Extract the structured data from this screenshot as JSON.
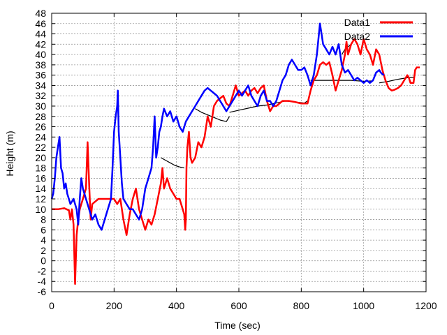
{
  "chart_data": {
    "type": "line",
    "title": "",
    "xlabel": "Time (sec)",
    "ylabel": "Height (m)",
    "xlim": [
      0,
      1200
    ],
    "ylim": [
      -6,
      48
    ],
    "xticks": [
      0,
      200,
      400,
      600,
      800,
      1000,
      1200
    ],
    "yticks": [
      -6,
      -4,
      -2,
      0,
      2,
      4,
      6,
      8,
      10,
      12,
      14,
      16,
      18,
      20,
      22,
      24,
      26,
      28,
      30,
      32,
      34,
      36,
      38,
      40,
      42,
      44,
      46,
      48
    ],
    "grid": true,
    "legend_position": "top-right",
    "series": [
      {
        "name": "Data1",
        "color": "#ff0000",
        "points": [
          [
            0,
            10
          ],
          [
            20,
            10
          ],
          [
            40,
            10.2
          ],
          [
            55,
            9.8
          ],
          [
            60,
            8
          ],
          [
            65,
            10
          ],
          [
            70,
            7
          ],
          [
            75,
            -4.5
          ],
          [
            80,
            5
          ],
          [
            85,
            8
          ],
          [
            90,
            10
          ],
          [
            100,
            12
          ],
          [
            110,
            14
          ],
          [
            115,
            23
          ],
          [
            120,
            15
          ],
          [
            125,
            8
          ],
          [
            130,
            11
          ],
          [
            140,
            11.5
          ],
          [
            150,
            12
          ],
          [
            160,
            12
          ],
          [
            170,
            12
          ],
          [
            180,
            12
          ],
          [
            190,
            12
          ],
          [
            200,
            12
          ],
          [
            210,
            11
          ],
          [
            220,
            12
          ],
          [
            230,
            8
          ],
          [
            240,
            5
          ],
          [
            250,
            9
          ],
          [
            260,
            12
          ],
          [
            270,
            14
          ],
          [
            280,
            10
          ],
          [
            290,
            8
          ],
          [
            300,
            6
          ],
          [
            310,
            8
          ],
          [
            320,
            7
          ],
          [
            330,
            9
          ],
          [
            340,
            12
          ],
          [
            350,
            15
          ],
          [
            355,
            18
          ],
          [
            360,
            14
          ],
          [
            370,
            16
          ],
          [
            380,
            14
          ],
          [
            390,
            13
          ],
          [
            400,
            12
          ],
          [
            410,
            12
          ],
          [
            420,
            10
          ],
          [
            425,
            9
          ],
          [
            428,
            6
          ],
          [
            430,
            8
          ],
          [
            432,
            18
          ],
          [
            435,
            22
          ],
          [
            440,
            25
          ],
          [
            445,
            20
          ],
          [
            450,
            19
          ],
          [
            460,
            20
          ],
          [
            470,
            23
          ],
          [
            480,
            22
          ],
          [
            490,
            24
          ],
          [
            500,
            28
          ],
          [
            510,
            26
          ],
          [
            520,
            30
          ],
          [
            530,
            31
          ],
          [
            540,
            31.5
          ],
          [
            550,
            32
          ],
          [
            560,
            30.5
          ],
          [
            570,
            30
          ],
          [
            580,
            32
          ],
          [
            590,
            34
          ],
          [
            600,
            32
          ],
          [
            610,
            32.5
          ],
          [
            620,
            33
          ],
          [
            630,
            32
          ],
          [
            640,
            33
          ],
          [
            650,
            33.5
          ],
          [
            660,
            32.5
          ],
          [
            670,
            33.5
          ],
          [
            680,
            34
          ],
          [
            690,
            31
          ],
          [
            700,
            29
          ],
          [
            710,
            30
          ],
          [
            720,
            30
          ],
          [
            730,
            30.5
          ],
          [
            740,
            31
          ],
          [
            760,
            31
          ],
          [
            780,
            30.8
          ],
          [
            800,
            30.5
          ],
          [
            820,
            30.5
          ],
          [
            830,
            33
          ],
          [
            840,
            35
          ],
          [
            850,
            36
          ],
          [
            860,
            38
          ],
          [
            870,
            38.5
          ],
          [
            880,
            38
          ],
          [
            890,
            38.5
          ],
          [
            900,
            36
          ],
          [
            910,
            33
          ],
          [
            920,
            35
          ],
          [
            930,
            37
          ],
          [
            940,
            40
          ],
          [
            945,
            42.5
          ],
          [
            950,
            40
          ],
          [
            960,
            42
          ],
          [
            970,
            43
          ],
          [
            980,
            42
          ],
          [
            990,
            40
          ],
          [
            1000,
            43
          ],
          [
            1010,
            41
          ],
          [
            1020,
            40
          ],
          [
            1030,
            38
          ],
          [
            1040,
            41
          ],
          [
            1050,
            40
          ],
          [
            1060,
            37
          ],
          [
            1070,
            35
          ],
          [
            1080,
            33.5
          ],
          [
            1090,
            33
          ],
          [
            1100,
            33.2
          ],
          [
            1110,
            33.5
          ],
          [
            1120,
            34
          ],
          [
            1130,
            35
          ],
          [
            1140,
            36
          ],
          [
            1145,
            35.5
          ],
          [
            1150,
            34.5
          ],
          [
            1160,
            34.5
          ],
          [
            1165,
            37
          ],
          [
            1170,
            37.5
          ],
          [
            1175,
            37.5
          ],
          [
            1180,
            37.5
          ]
        ]
      },
      {
        "name": "Data2",
        "color": "#0000ff",
        "points": [
          [
            0,
            12
          ],
          [
            5,
            13
          ],
          [
            10,
            16
          ],
          [
            15,
            20
          ],
          [
            20,
            22
          ],
          [
            25,
            24
          ],
          [
            30,
            18
          ],
          [
            35,
            17
          ],
          [
            40,
            14
          ],
          [
            45,
            15
          ],
          [
            50,
            13
          ],
          [
            55,
            12
          ],
          [
            60,
            11
          ],
          [
            70,
            12
          ],
          [
            80,
            10
          ],
          [
            85,
            7
          ],
          [
            90,
            12
          ],
          [
            95,
            16
          ],
          [
            100,
            14
          ],
          [
            110,
            12
          ],
          [
            120,
            10
          ],
          [
            130,
            8
          ],
          [
            140,
            9
          ],
          [
            150,
            7
          ],
          [
            160,
            6
          ],
          [
            170,
            8
          ],
          [
            180,
            10
          ],
          [
            190,
            12
          ],
          [
            195,
            18
          ],
          [
            200,
            25
          ],
          [
            205,
            28
          ],
          [
            210,
            30
          ],
          [
            212,
            33
          ],
          [
            215,
            25
          ],
          [
            220,
            20
          ],
          [
            225,
            15
          ],
          [
            230,
            12
          ],
          [
            240,
            11
          ],
          [
            250,
            10
          ],
          [
            260,
            10
          ],
          [
            270,
            9
          ],
          [
            280,
            8
          ],
          [
            290,
            10
          ],
          [
            300,
            14
          ],
          [
            310,
            16
          ],
          [
            320,
            18
          ],
          [
            325,
            22
          ],
          [
            330,
            28
          ],
          [
            335,
            20
          ],
          [
            340,
            22
          ],
          [
            345,
            25
          ],
          [
            350,
            26
          ],
          [
            355,
            28
          ],
          [
            360,
            29.5
          ],
          [
            370,
            28
          ],
          [
            380,
            29
          ],
          [
            390,
            27
          ],
          [
            400,
            28
          ],
          [
            410,
            26
          ],
          [
            420,
            25
          ],
          [
            430,
            27
          ],
          [
            440,
            28
          ],
          [
            450,
            29
          ],
          [
            460,
            30
          ],
          [
            470,
            31
          ],
          [
            480,
            32
          ],
          [
            490,
            33
          ],
          [
            500,
            33.5
          ],
          [
            510,
            33
          ],
          [
            520,
            32.5
          ],
          [
            530,
            32
          ],
          [
            540,
            31
          ],
          [
            550,
            30
          ],
          [
            560,
            29
          ],
          [
            570,
            30
          ],
          [
            580,
            31
          ],
          [
            590,
            32
          ],
          [
            600,
            33
          ],
          [
            610,
            32
          ],
          [
            620,
            33
          ],
          [
            630,
            34
          ],
          [
            640,
            32
          ],
          [
            650,
            31
          ],
          [
            660,
            30
          ],
          [
            670,
            32
          ],
          [
            680,
            33
          ],
          [
            690,
            31
          ],
          [
            700,
            31
          ],
          [
            710,
            30
          ],
          [
            720,
            31
          ],
          [
            730,
            33
          ],
          [
            740,
            35
          ],
          [
            750,
            36
          ],
          [
            760,
            38
          ],
          [
            770,
            39
          ],
          [
            780,
            38
          ],
          [
            790,
            37
          ],
          [
            800,
            37
          ],
          [
            810,
            37.5
          ],
          [
            820,
            36
          ],
          [
            830,
            34
          ],
          [
            840,
            36
          ],
          [
            850,
            40
          ],
          [
            855,
            43
          ],
          [
            860,
            46
          ],
          [
            865,
            44
          ],
          [
            870,
            42
          ],
          [
            880,
            41
          ],
          [
            890,
            40
          ],
          [
            900,
            41.5
          ],
          [
            910,
            40
          ],
          [
            920,
            42
          ],
          [
            930,
            38
          ],
          [
            940,
            36.5
          ],
          [
            950,
            37
          ],
          [
            960,
            36
          ],
          [
            970,
            35
          ],
          [
            980,
            35.5
          ],
          [
            990,
            35
          ],
          [
            1000,
            34.5
          ],
          [
            1010,
            35
          ],
          [
            1020,
            34.5
          ],
          [
            1030,
            35
          ],
          [
            1040,
            36.5
          ],
          [
            1050,
            37
          ],
          [
            1055,
            36.5
          ],
          [
            1060,
            36.2
          ],
          [
            1065,
            36
          ]
        ]
      },
      {
        "name": "",
        "color": "#000000",
        "points": [
          [
            350,
            20
          ],
          [
            365,
            19.5
          ],
          [
            380,
            19
          ],
          [
            395,
            18.5
          ],
          [
            410,
            18.2
          ],
          [
            425,
            18
          ]
        ]
      },
      {
        "name": "",
        "color": "#000000",
        "points": [
          [
            460,
            29.5
          ],
          [
            480,
            28.8
          ],
          [
            500,
            28.3
          ],
          [
            520,
            27.8
          ],
          [
            540,
            27.3
          ],
          [
            560,
            27
          ],
          [
            570,
            28
          ]
        ]
      },
      {
        "name": "",
        "color": "#000000",
        "points": [
          [
            570,
            28.8
          ],
          [
            600,
            29.2
          ],
          [
            630,
            29.6
          ],
          [
            660,
            30
          ],
          [
            690,
            30.2
          ],
          [
            720,
            30.6
          ],
          [
            750,
            31
          ]
        ]
      },
      {
        "name": "",
        "color": "#000000",
        "points": [
          [
            750,
            31
          ],
          [
            780,
            30.8
          ],
          [
            810,
            30.6
          ],
          [
            820,
            31
          ]
        ]
      },
      {
        "name": "",
        "color": "#000000",
        "points": [
          [
            830,
            35
          ],
          [
            870,
            35
          ],
          [
            900,
            35
          ],
          [
            930,
            35
          ],
          [
            960,
            35
          ],
          [
            1000,
            34.8
          ],
          [
            1030,
            34.9
          ]
        ]
      },
      {
        "name": "",
        "color": "#000000",
        "points": [
          [
            1050,
            34.5
          ],
          [
            1080,
            34.8
          ],
          [
            1110,
            35.2
          ],
          [
            1140,
            35.5
          ],
          [
            1160,
            35.6
          ]
        ]
      },
      {
        "name": "",
        "color": "#000000",
        "points": [
          [
            930,
            40
          ],
          [
            940,
            41
          ],
          [
            950,
            41.5
          ],
          [
            960,
            42
          ]
        ]
      }
    ]
  }
}
